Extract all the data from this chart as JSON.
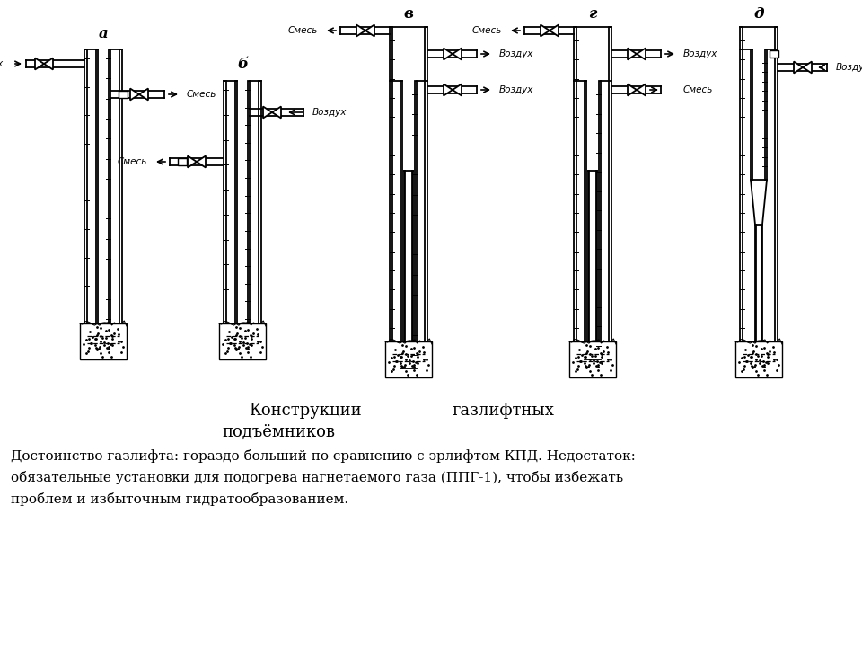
{
  "title_line1": "Конструкции                газлифтных",
  "title_line2": "подъёмников",
  "body_text_line1": "Достоинство газлифта: гораздо больший по сравнению с эрлифтом КПД. Недостаток:",
  "body_text_line2": "обязательные установки для подогрева нагнетаемого газа (ППГ-1), чтобы избежать",
  "body_text_line3": "проблем и избыточным гидратообразованием.",
  "bg_color": "#ffffff",
  "line_color": "#000000"
}
